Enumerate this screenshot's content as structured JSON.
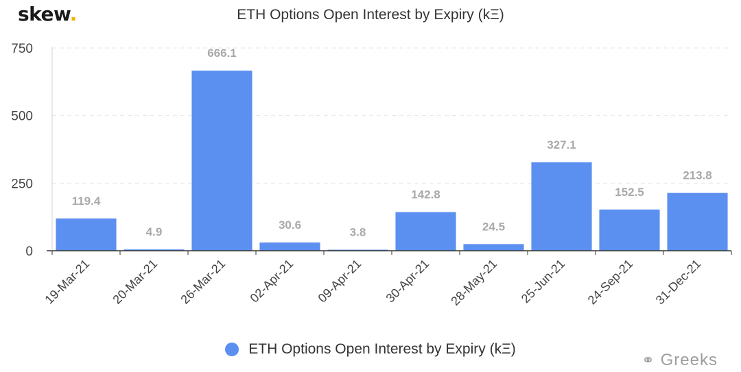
{
  "brand": {
    "name": "skew",
    "dot": "."
  },
  "watermark": {
    "icon": "wechat-icon",
    "text": "Greeks"
  },
  "colors": {
    "bar": "#5b8ff0",
    "label": "#a9a9a9",
    "grid": "#e6e6e6",
    "axis": "#333333",
    "tick": "#444444"
  },
  "chart_data": {
    "type": "bar",
    "title": "ETH Options Open Interest by Expiry (kΞ)",
    "xlabel": "",
    "ylabel": "",
    "categories": [
      "19-Mar-21",
      "20-Mar-21",
      "26-Mar-21",
      "02-Apr-21",
      "09-Apr-21",
      "30-Apr-21",
      "28-May-21",
      "25-Jun-21",
      "24-Sep-21",
      "31-Dec-21"
    ],
    "series": [
      {
        "name": "ETH Options Open Interest by Expiry (kΞ)",
        "values": [
          119.4,
          4.9,
          666.1,
          30.6,
          3.8,
          142.8,
          24.5,
          327.1,
          152.5,
          213.8
        ]
      }
    ],
    "data_labels": [
      "119.4",
      "4.9",
      "666.1",
      "30.6",
      "3.8",
      "142.8",
      "24.5",
      "327.1",
      "152.5",
      "213.8"
    ],
    "y_ticks": [
      0,
      250,
      500,
      750
    ],
    "ylim": [
      0,
      750
    ],
    "grid": true,
    "legend_position": "bottom"
  }
}
